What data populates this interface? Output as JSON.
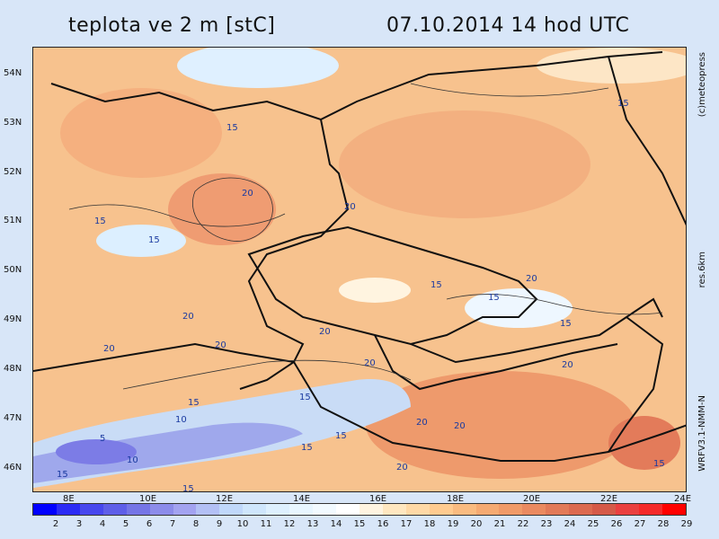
{
  "title_left": "teplota ve 2 m [stC]",
  "title_right": "07.10.2014   14 hod UTC",
  "lat_labels": [
    "54N",
    "53N",
    "52N",
    "51N",
    "50N",
    "49N",
    "48N",
    "47N",
    "46N"
  ],
  "lon_labels": [
    "8E",
    "10E",
    "12E",
    "14E",
    "16E",
    "18E",
    "20E",
    "22E",
    "24E"
  ],
  "side_credit": "(c)meteopress",
  "side_res": "res.6km",
  "side_model": "WRFV3.1-NMM-N",
  "contour_labels": [
    "15",
    "15",
    "20",
    "15",
    "15",
    "20",
    "20",
    "15",
    "15",
    "20",
    "15",
    "20",
    "20",
    "20",
    "20",
    "20",
    "15",
    "15",
    "10",
    "5",
    "10",
    "20",
    "20",
    "15",
    "15",
    "20",
    "15",
    "15",
    "15"
  ],
  "legend": {
    "values": [
      "2",
      "3",
      "4",
      "5",
      "6",
      "7",
      "8",
      "9",
      "10",
      "11",
      "12",
      "13",
      "14",
      "15",
      "16",
      "17",
      "18",
      "19",
      "20",
      "21",
      "22",
      "23",
      "24",
      "25",
      "26",
      "27",
      "28",
      "29"
    ],
    "colors": [
      "#0000ff",
      "#2b2bf5",
      "#4747ee",
      "#5e5ee8",
      "#7575e6",
      "#8c8cea",
      "#a3a3f0",
      "#b3c0f5",
      "#c0d8fa",
      "#cfe6fc",
      "#def0fe",
      "#e8f6ff",
      "#f2faff",
      "#ffffff",
      "#fff4e0",
      "#ffe7c0",
      "#ffd9a6",
      "#ffcb90",
      "#f9bb80",
      "#f5aa72",
      "#f09a68",
      "#ea8a60",
      "#e27a58",
      "#dc6a50",
      "#d55a48",
      "#ea4040",
      "#f52a2a",
      "#ff0000"
    ]
  }
}
